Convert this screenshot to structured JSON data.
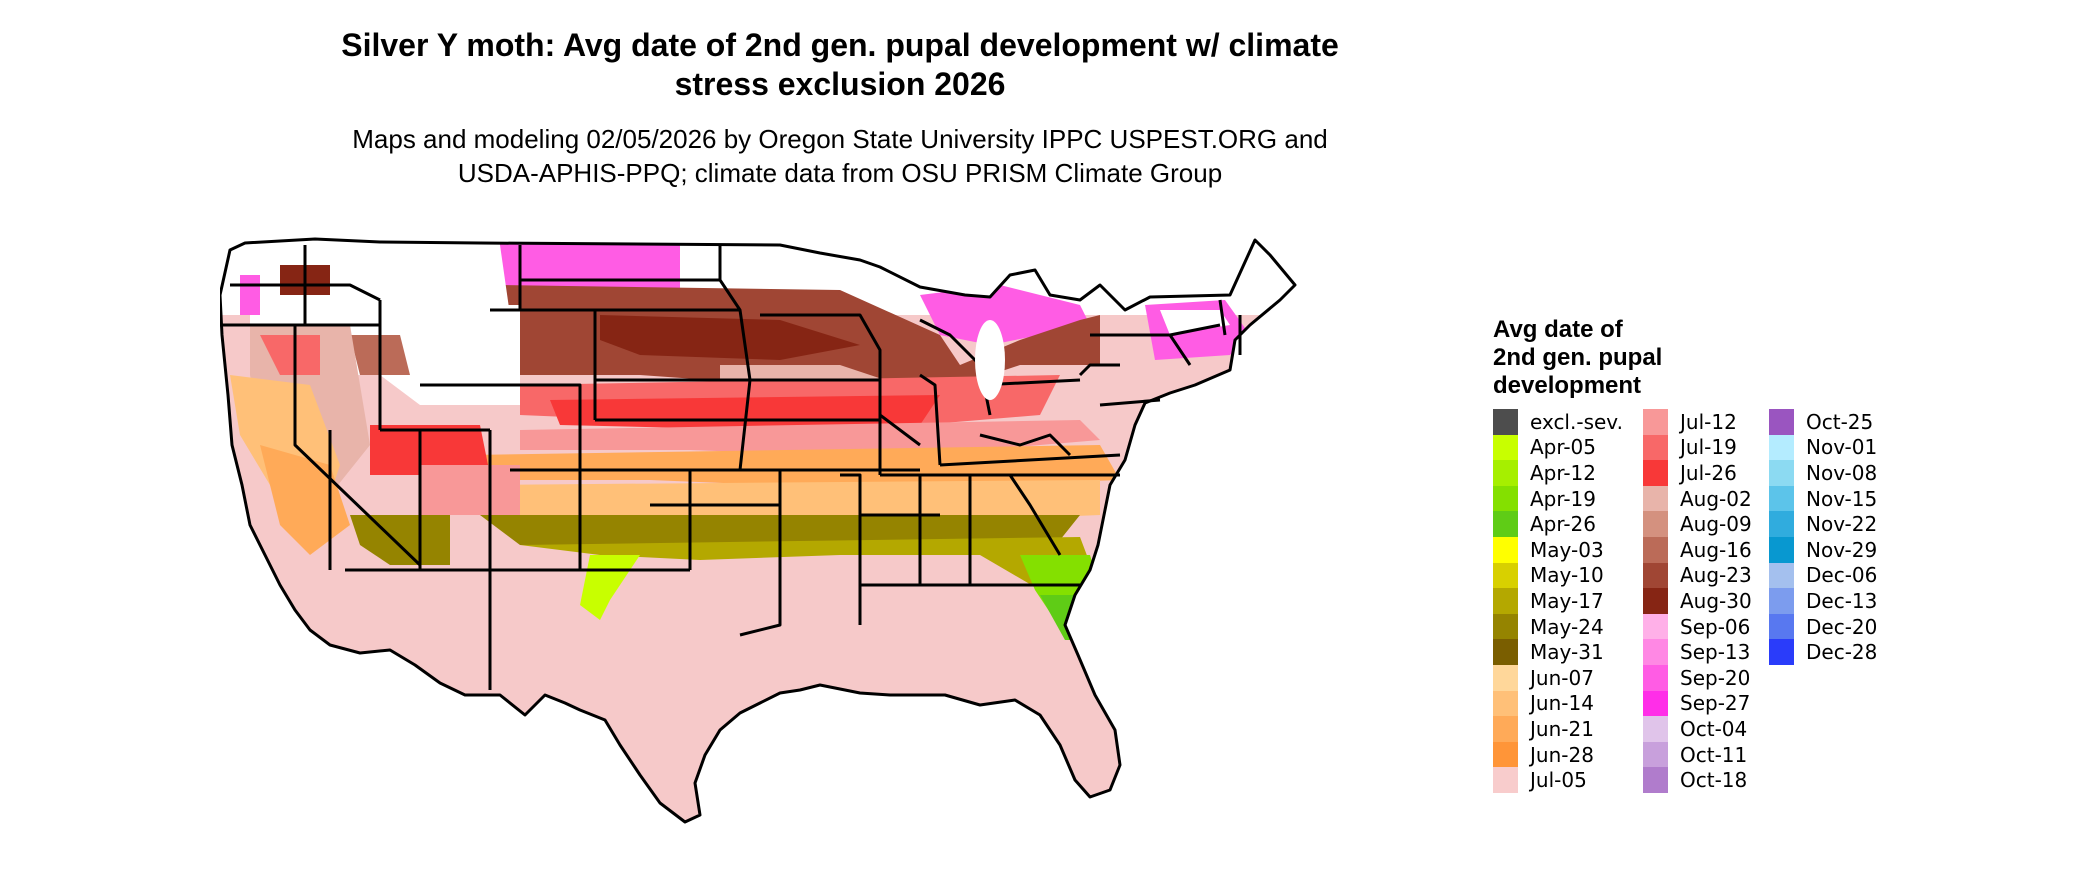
{
  "title_line1": "Silver Y moth: Avg date of 2nd gen. pupal development w/ climate",
  "title_line2": "stress exclusion 2026",
  "subtitle_line1": "Maps and modeling 02/05/2026 by Oregon State University IPPC USPEST.ORG and",
  "subtitle_line2": "USDA-APHIS-PPQ; climate data from OSU PRISM Climate Group",
  "legend": {
    "title_line1": "Avg date of",
    "title_line2": "2nd gen. pupal",
    "title_line3": "development",
    "items": [
      {
        "label": "excl.-sev.",
        "color": "#4d4d4d"
      },
      {
        "label": "Apr-05",
        "color": "#c8ff00"
      },
      {
        "label": "Apr-12",
        "color": "#a6ef00"
      },
      {
        "label": "Apr-19",
        "color": "#84e000"
      },
      {
        "label": "Apr-26",
        "color": "#5fcc16"
      },
      {
        "label": "May-03",
        "color": "#ffff00"
      },
      {
        "label": "May-10",
        "color": "#d8d000"
      },
      {
        "label": "May-17",
        "color": "#b4a800"
      },
      {
        "label": "May-24",
        "color": "#958400"
      },
      {
        "label": "May-31",
        "color": "#7a5e00"
      },
      {
        "label": "Jun-07",
        "color": "#ffd79a"
      },
      {
        "label": "Jun-14",
        "color": "#ffc078"
      },
      {
        "label": "Jun-21",
        "color": "#ffaa58"
      },
      {
        "label": "Jun-28",
        "color": "#ff9538"
      },
      {
        "label": "Jul-05",
        "color": "#f8cccc"
      },
      {
        "label": "Jul-12",
        "color": "#f89898"
      },
      {
        "label": "Jul-19",
        "color": "#f86868"
      },
      {
        "label": "Jul-26",
        "color": "#f83838"
      },
      {
        "label": "Aug-02",
        "color": "#e8b4aa"
      },
      {
        "label": "Aug-09",
        "color": "#d4917f"
      },
      {
        "label": "Aug-16",
        "color": "#bb6b58"
      },
      {
        "label": "Aug-23",
        "color": "#a04634"
      },
      {
        "label": "Aug-30",
        "color": "#862514"
      },
      {
        "label": "Sep-06",
        "color": "#ffb0e8"
      },
      {
        "label": "Sep-13",
        "color": "#ff88e4"
      },
      {
        "label": "Sep-20",
        "color": "#ff5ce4"
      },
      {
        "label": "Sep-27",
        "color": "#ff2ee8"
      },
      {
        "label": "Oct-04",
        "color": "#e0c4ea"
      },
      {
        "label": "Oct-11",
        "color": "#c8a0dc"
      },
      {
        "label": "Oct-18",
        "color": "#b07ccc"
      },
      {
        "label": "Oct-25",
        "color": "#9a55c0"
      },
      {
        "label": "Nov-01",
        "color": "#b4ecff"
      },
      {
        "label": "Nov-08",
        "color": "#8cdaf2"
      },
      {
        "label": "Nov-15",
        "color": "#5cc4ea"
      },
      {
        "label": "Nov-22",
        "color": "#30acde"
      },
      {
        "label": "Nov-29",
        "color": "#0898d0"
      },
      {
        "label": "Dec-06",
        "color": "#a4c0ee"
      },
      {
        "label": "Dec-13",
        "color": "#7c9cee"
      },
      {
        "label": "Dec-20",
        "color": "#5878f0"
      },
      {
        "label": "Dec-28",
        "color": "#2a3cfa"
      }
    ]
  }
}
